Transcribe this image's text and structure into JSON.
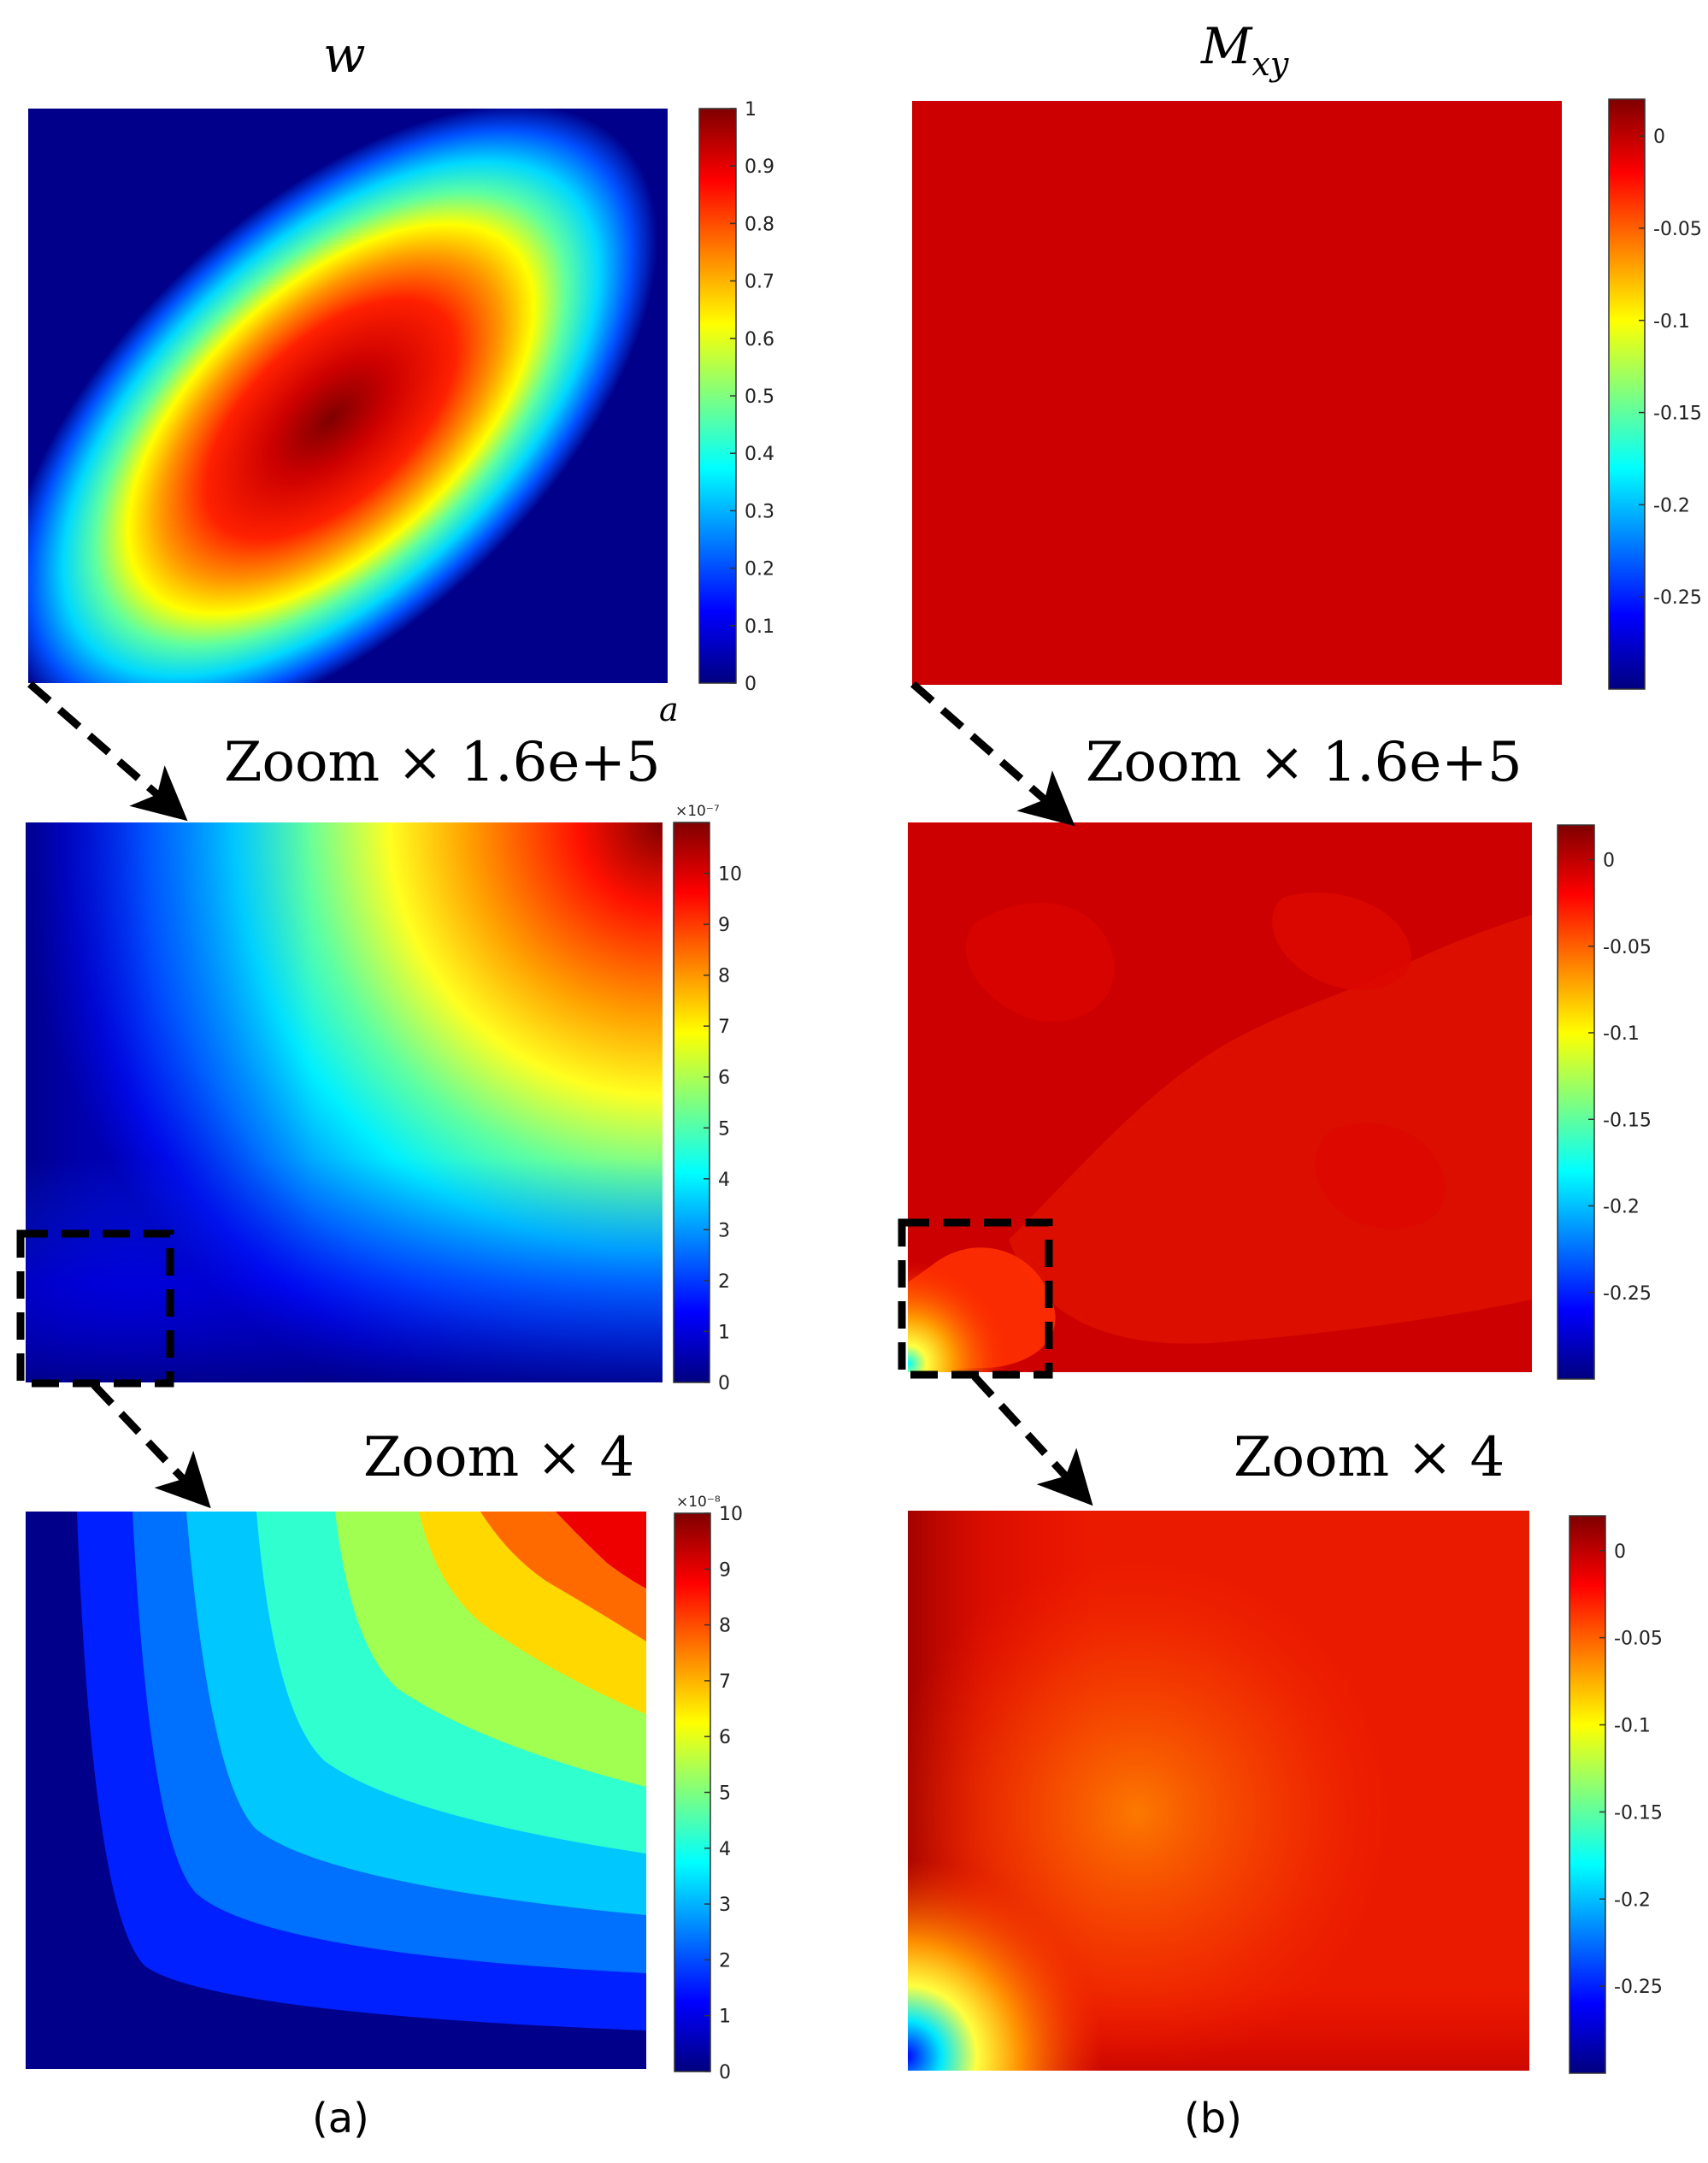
{
  "titles": {
    "left_main": "w",
    "right_main": "M",
    "right_sub": "xy"
  },
  "zoom_labels": {
    "left_mid": "Zoom × 1.6e+5",
    "right_mid": "Zoom × 1.6e+5",
    "left_bottom": "Zoom × 4",
    "right_bottom": "Zoom × 4"
  },
  "axis_letter": "a",
  "captions": {
    "left": "(a)",
    "right": "(b)"
  },
  "colors": {
    "jet": [
      "#00007f",
      "#0000ff",
      "#007fff",
      "#00ffff",
      "#7fff7f",
      "#ffff00",
      "#ff7f00",
      "#ff0000",
      "#7f0000"
    ],
    "mxy_top_fill": "#cc0000",
    "dashed": "#000000"
  },
  "chart_data": [
    {
      "type": "heatmap",
      "panel": "w-full",
      "colorbar": {
        "ticks": [
          "0",
          "0.1",
          "0.2",
          "0.3",
          "0.4",
          "0.5",
          "0.6",
          "0.7",
          "0.8",
          "0.9",
          "1"
        ],
        "range": [
          0,
          1
        ],
        "exponent": ""
      }
    },
    {
      "type": "heatmap",
      "panel": "w-zoom1",
      "colorbar": {
        "ticks": [
          "0",
          "1",
          "2",
          "3",
          "4",
          "5",
          "6",
          "7",
          "8",
          "9",
          "10"
        ],
        "range": [
          0,
          11
        ],
        "exponent": "×10⁻⁷"
      }
    },
    {
      "type": "heatmap",
      "panel": "w-zoom2",
      "colorbar": {
        "ticks": [
          "0",
          "1",
          "2",
          "3",
          "4",
          "5",
          "6",
          "7",
          "8",
          "9",
          "10"
        ],
        "range": [
          0,
          10
        ],
        "exponent": "×10⁻⁸"
      }
    },
    {
      "type": "heatmap",
      "panel": "mxy-full",
      "colorbar": {
        "ticks": [
          "0",
          "-0.05",
          "-0.1",
          "-0.15",
          "-0.2",
          "-0.25"
        ],
        "range": [
          -0.3,
          0.02
        ],
        "exponent": ""
      }
    },
    {
      "type": "heatmap",
      "panel": "mxy-zoom1",
      "colorbar": {
        "ticks": [
          "0",
          "-0.05",
          "-0.1",
          "-0.15",
          "-0.2",
          "-0.25"
        ],
        "range": [
          -0.3,
          0.02
        ],
        "exponent": ""
      }
    },
    {
      "type": "heatmap",
      "panel": "mxy-zoom2",
      "colorbar": {
        "ticks": [
          "0",
          "-0.05",
          "-0.1",
          "-0.15",
          "-0.2",
          "-0.25"
        ],
        "range": [
          -0.3,
          0.02
        ],
        "exponent": ""
      }
    }
  ]
}
